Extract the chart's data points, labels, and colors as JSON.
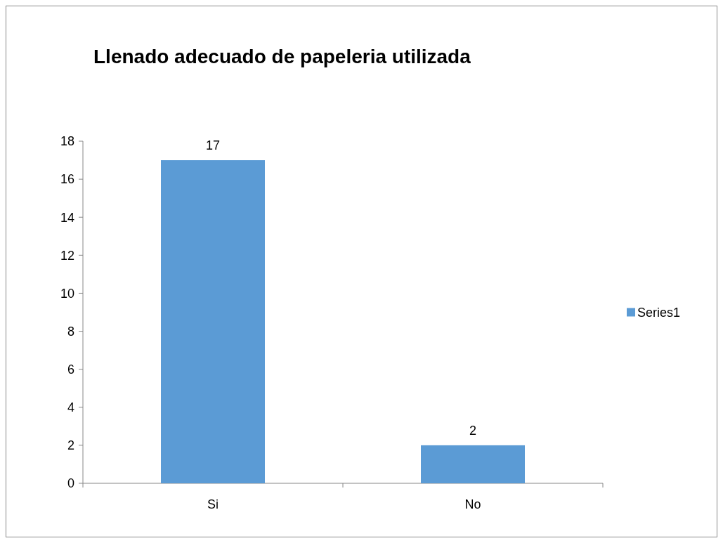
{
  "chart_data": {
    "type": "bar",
    "title": "Llenado adecuado de papeleria utilizada",
    "categories": [
      "Si",
      "No"
    ],
    "series": [
      {
        "name": "Series1",
        "color": "#5b9bd5",
        "values": [
          17,
          2
        ]
      }
    ],
    "ylim": [
      0,
      18
    ],
    "yticks": [
      0,
      2,
      4,
      6,
      8,
      10,
      12,
      14,
      16,
      18
    ],
    "grid": false,
    "legend": "right",
    "data_labels": true
  }
}
